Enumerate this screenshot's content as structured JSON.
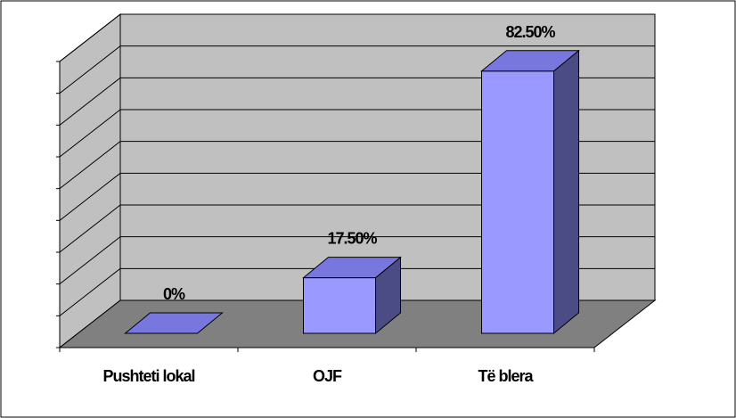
{
  "chart_data": {
    "type": "bar",
    "style": "3d-column",
    "categories": [
      "Pushteti lokal",
      "OJF",
      "Të blera"
    ],
    "values": [
      0,
      17.5,
      82.5
    ],
    "data_labels": [
      "0%",
      "17.50%",
      "82.50%"
    ],
    "title": "",
    "xlabel": "",
    "ylabel": "",
    "ylim": [
      0,
      90
    ],
    "grid": true,
    "legend": "none",
    "colors": {
      "bar_front": "#9999ff",
      "bar_top": "#7777dd",
      "bar_side": "#4b4b86",
      "wall": "#c0c0c0",
      "floor": "#808080",
      "gridline": "#000000"
    }
  }
}
